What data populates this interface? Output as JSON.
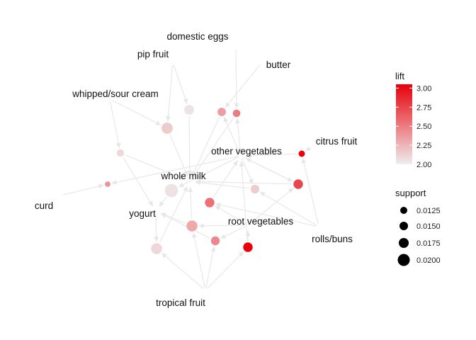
{
  "items": [
    {
      "id": "domestic_eggs",
      "label": "domestic eggs"
    },
    {
      "id": "pip_fruit",
      "label": "pip fruit"
    },
    {
      "id": "butter",
      "label": "butter"
    },
    {
      "id": "whipped_sour_cream",
      "label": "whipped/sour cream"
    },
    {
      "id": "citrus_fruit",
      "label": "citrus fruit"
    },
    {
      "id": "other_vegetables",
      "label": "other vegetables"
    },
    {
      "id": "whole_milk",
      "label": "whole milk"
    },
    {
      "id": "curd",
      "label": "curd"
    },
    {
      "id": "yogurt",
      "label": "yogurt"
    },
    {
      "id": "root_vegetables",
      "label": "root vegetables"
    },
    {
      "id": "rolls_buns",
      "label": "rolls/buns"
    },
    {
      "id": "tropical_fruit",
      "label": "tropical fruit"
    }
  ],
  "rules": [
    {
      "id": "r1",
      "lift": 2.05,
      "support": 0.0145
    },
    {
      "id": "r2",
      "lift": 2.15,
      "support": 0.017
    },
    {
      "id": "r3",
      "lift": 2.5,
      "support": 0.0115
    },
    {
      "id": "r4",
      "lift": 2.35,
      "support": 0.0125
    },
    {
      "id": "r5",
      "lift": 2.1,
      "support": 0.0112
    },
    {
      "id": "r6",
      "lift": 3.05,
      "support": 0.0105
    },
    {
      "id": "r7",
      "lift": 2.05,
      "support": 0.0215
    },
    {
      "id": "r8",
      "lift": 2.15,
      "support": 0.0128
    },
    {
      "id": "r9",
      "lift": 2.55,
      "support": 0.014
    },
    {
      "id": "r10",
      "lift": 2.4,
      "support": 0.01
    },
    {
      "id": "r11",
      "lift": 2.75,
      "support": 0.014
    },
    {
      "id": "r12",
      "lift": 2.3,
      "support": 0.0165
    },
    {
      "id": "r13",
      "lift": 2.45,
      "support": 0.013
    },
    {
      "id": "r14",
      "lift": 3.05,
      "support": 0.014
    },
    {
      "id": "r15",
      "lift": 2.1,
      "support": 0.0165
    }
  ],
  "edges": [
    [
      "domestic_eggs",
      "r3"
    ],
    [
      "pip_fruit",
      "r1"
    ],
    [
      "pip_fruit",
      "r2"
    ],
    [
      "butter",
      "r4"
    ],
    [
      "whipped_sour_cream",
      "r2"
    ],
    [
      "whipped_sour_cream",
      "r5"
    ],
    [
      "citrus_fruit",
      "r6"
    ],
    [
      "curd",
      "r10"
    ],
    [
      "r3",
      "whole_milk"
    ],
    [
      "r4",
      "whole_milk"
    ],
    [
      "r1",
      "whole_milk"
    ],
    [
      "r2",
      "whole_milk"
    ],
    [
      "r5",
      "whole_milk"
    ],
    [
      "r5",
      "yogurt"
    ],
    [
      "r6",
      "other_vegetables"
    ],
    [
      "other_vegetables",
      "r3"
    ],
    [
      "other_vegetables",
      "r4"
    ],
    [
      "other_vegetables",
      "r7"
    ],
    [
      "other_vegetables",
      "r10"
    ],
    [
      "other_vegetables",
      "r8"
    ],
    [
      "other_vegetables",
      "r11"
    ],
    [
      "r8",
      "whole_milk"
    ],
    [
      "rolls_buns",
      "r8"
    ],
    [
      "rolls_buns",
      "r6"
    ],
    [
      "rolls_buns",
      "r9"
    ],
    [
      "r9",
      "other_vegetables"
    ],
    [
      "r11",
      "other_vegetables"
    ],
    [
      "r11",
      "whole_milk"
    ],
    [
      "root_vegetables",
      "r9"
    ],
    [
      "root_vegetables",
      "r11"
    ],
    [
      "root_vegetables",
      "r12"
    ],
    [
      "root_vegetables",
      "r13"
    ],
    [
      "r12",
      "whole_milk"
    ],
    [
      "r12",
      "yogurt"
    ],
    [
      "r13",
      "yogurt"
    ],
    [
      "r7",
      "yogurt"
    ],
    [
      "yogurt",
      "r15"
    ],
    [
      "r15",
      "whole_milk"
    ],
    [
      "tropical_fruit",
      "r15"
    ],
    [
      "tropical_fruit",
      "r12"
    ],
    [
      "tropical_fruit",
      "r13"
    ],
    [
      "tropical_fruit",
      "r14"
    ],
    [
      "r14",
      "root_vegetables"
    ],
    [
      "r14",
      "other_vegetables"
    ]
  ],
  "legend": {
    "lift": {
      "title": "lift",
      "min": 2.0,
      "max": 3.05,
      "ticks": [
        "2.00",
        "2.25",
        "2.50",
        "2.75",
        "3.00"
      ],
      "low_color": "#eeeeee",
      "high_color": "#e8000b"
    },
    "support": {
      "title": "support",
      "ticks": [
        "0.0125",
        "0.0150",
        "0.0175",
        "0.0200"
      ],
      "values": [
        0.0125,
        0.015,
        0.0175,
        0.02
      ]
    }
  },
  "colors": {
    "edge": "#e9e9e9",
    "text": "#111111"
  }
}
